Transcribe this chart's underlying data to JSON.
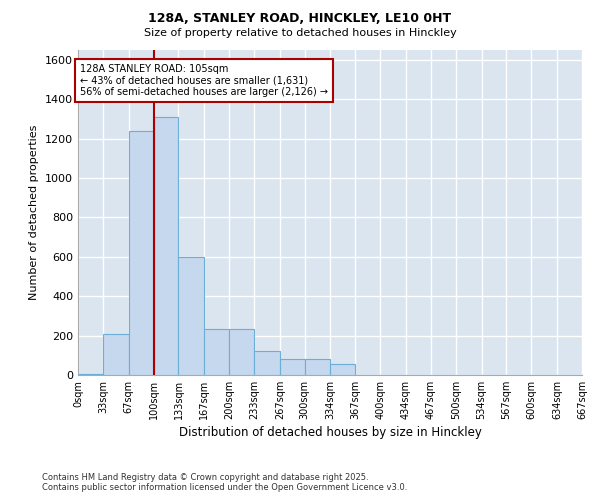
{
  "title_line1": "128A, STANLEY ROAD, HINCKLEY, LE10 0HT",
  "title_line2": "Size of property relative to detached houses in Hinckley",
  "xlabel": "Distribution of detached houses by size in Hinckley",
  "ylabel": "Number of detached properties",
  "bar_color": "#c5d8ee",
  "bar_edge_color": "#6baed6",
  "background_color": "#dae5f0",
  "grid_color": "#ffffff",
  "figure_bg": "#ffffff",
  "bin_edges": [
    0,
    33,
    67,
    100,
    133,
    167,
    200,
    233,
    267,
    300,
    334,
    367,
    400,
    434,
    467,
    500,
    534,
    567,
    600,
    634,
    667
  ],
  "bin_labels": [
    "0sqm",
    "33sqm",
    "67sqm",
    "100sqm",
    "133sqm",
    "167sqm",
    "200sqm",
    "233sqm",
    "267sqm",
    "300sqm",
    "334sqm",
    "367sqm",
    "400sqm",
    "434sqm",
    "467sqm",
    "500sqm",
    "534sqm",
    "567sqm",
    "600sqm",
    "634sqm",
    "667sqm"
  ],
  "bar_heights": [
    5,
    210,
    1240,
    1310,
    600,
    235,
    235,
    120,
    80,
    80,
    55,
    0,
    0,
    0,
    0,
    0,
    0,
    0,
    0,
    0
  ],
  "vline_x": 100,
  "vline_color": "#aa0000",
  "annotation_text": "128A STANLEY ROAD: 105sqm\n← 43% of detached houses are smaller (1,631)\n56% of semi-detached houses are larger (2,126) →",
  "annotation_box_facecolor": "#ffffff",
  "annotation_box_edgecolor": "#aa0000",
  "ylim": [
    0,
    1650
  ],
  "yticks": [
    0,
    200,
    400,
    600,
    800,
    1000,
    1200,
    1400,
    1600
  ],
  "footer_line1": "Contains HM Land Registry data © Crown copyright and database right 2025.",
  "footer_line2": "Contains public sector information licensed under the Open Government Licence v3.0."
}
